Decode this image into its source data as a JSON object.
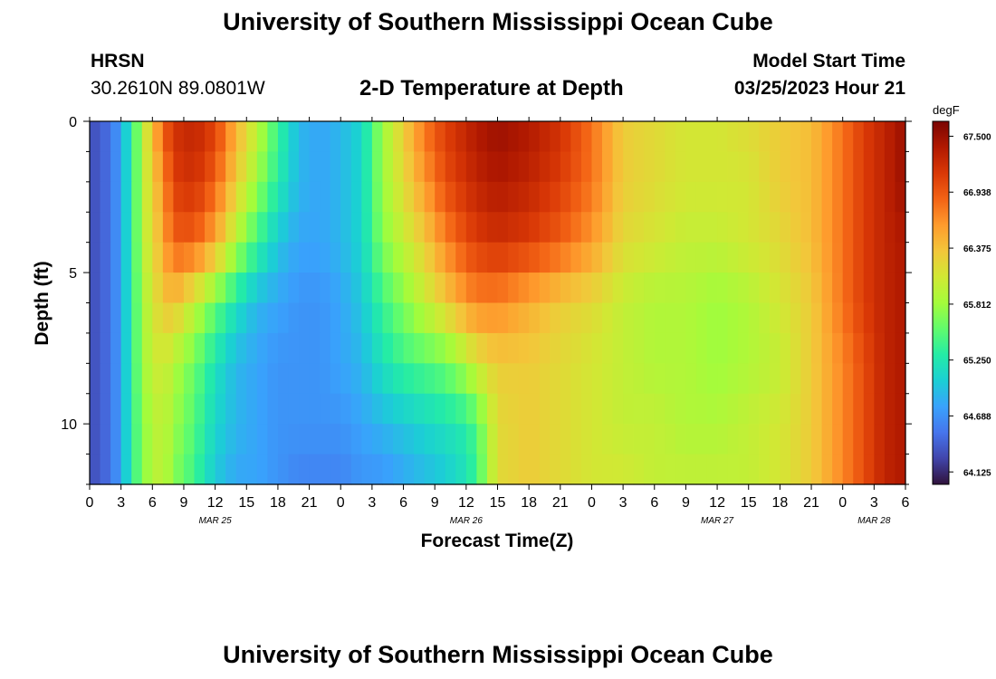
{
  "header": {
    "title": "University of Southern Mississippi Ocean Cube",
    "station_id": "HRSN",
    "coordinates": "30.2610N  89.0801W",
    "plot_title": "2-D Temperature at Depth",
    "model_start_label": "Model Start Time",
    "model_start_value": "03/25/2023 Hour 21"
  },
  "footer": {
    "title": "University of Southern Mississippi Ocean Cube"
  },
  "chart_data": {
    "type": "heatmap",
    "title": "2-D Temperature at Depth",
    "xlabel": "Forecast Time(Z)",
    "ylabel": "Depth (ft)",
    "x_hours_start": 0,
    "x_hours_end": 78,
    "x_ticks": [
      "0",
      "3",
      "6",
      "9",
      "12",
      "15",
      "18",
      "21",
      "0",
      "3",
      "6",
      "9",
      "12",
      "15",
      "18",
      "21",
      "0",
      "3",
      "6",
      "9",
      "12",
      "15",
      "18",
      "21",
      "0",
      "3",
      "6"
    ],
    "date_labels": [
      {
        "label": "MAR 25",
        "at_hour": 12
      },
      {
        "label": "MAR 26",
        "at_hour": 36
      },
      {
        "label": "MAR 27",
        "at_hour": 60
      },
      {
        "label": "MAR 28",
        "at_hour": 75
      }
    ],
    "y_ticks": [
      "0",
      "5",
      "10"
    ],
    "ylim": [
      0,
      12
    ],
    "colorbar": {
      "unit": "degF",
      "min": 64.0,
      "max": 67.65,
      "tick_values": [
        64.125,
        64.688,
        65.25,
        65.812,
        66.375,
        66.938,
        67.5
      ],
      "tick_labels": [
        "64.125",
        "64.688",
        "65.250",
        "65.812",
        "66.375",
        "66.938",
        "67.500"
      ],
      "colors": [
        "#30123b",
        "#4145ab",
        "#4675ed",
        "#39a2fc",
        "#1bcfd4",
        "#24eca6",
        "#61fc6c",
        "#a4fc3b",
        "#d1e834",
        "#f3c63a",
        "#fe9b2d",
        "#f36315",
        "#d93806",
        "#b11901",
        "#7a0403"
      ]
    },
    "depths_ft": [
      0,
      2,
      4,
      6,
      8,
      10,
      12
    ],
    "time_hours": [
      0,
      2,
      3,
      4,
      5,
      6,
      7,
      8,
      10,
      12,
      14,
      16,
      18,
      20,
      22,
      24,
      26,
      28,
      30,
      32,
      34,
      36,
      37,
      39,
      42,
      45,
      48,
      51,
      54,
      57,
      60,
      63,
      66,
      69,
      72,
      74,
      76,
      78
    ],
    "values": [
      [
        64.3,
        64.5,
        64.8,
        65.3,
        65.9,
        66.4,
        66.9,
        67.2,
        67.3,
        67.1,
        66.5,
        66.0,
        65.4,
        64.9,
        64.8,
        64.9,
        65.1,
        65.8,
        66.3,
        66.8,
        67.1,
        67.3,
        67.4,
        67.5,
        67.4,
        67.2,
        66.8,
        66.3,
        66.2,
        66.1,
        66.1,
        66.2,
        66.3,
        66.4,
        66.8,
        67.1,
        67.3,
        67.5
      ],
      [
        64.3,
        64.5,
        64.8,
        65.3,
        65.9,
        66.3,
        66.6,
        67.1,
        67.2,
        66.9,
        66.3,
        65.8,
        65.3,
        64.9,
        64.8,
        64.9,
        65.1,
        65.8,
        66.2,
        66.6,
        67.0,
        67.2,
        67.3,
        67.4,
        67.3,
        67.1,
        66.8,
        66.3,
        66.2,
        66.1,
        66.1,
        66.1,
        66.3,
        66.4,
        66.8,
        67.1,
        67.3,
        67.5
      ],
      [
        64.3,
        64.5,
        64.8,
        65.3,
        65.9,
        66.2,
        66.5,
        66.9,
        66.9,
        66.5,
        65.9,
        65.4,
        65.0,
        64.8,
        64.8,
        64.9,
        65.1,
        65.7,
        66.0,
        66.3,
        66.7,
        67.0,
        67.1,
        67.2,
        67.1,
        66.9,
        66.6,
        66.2,
        66.1,
        66.0,
        66.0,
        66.1,
        66.2,
        66.4,
        66.8,
        67.1,
        67.3,
        67.4
      ],
      [
        64.3,
        64.5,
        64.8,
        65.3,
        65.8,
        66.1,
        66.3,
        66.4,
        66.0,
        65.6,
        65.2,
        64.9,
        64.8,
        64.7,
        64.7,
        64.8,
        65.0,
        65.4,
        65.7,
        66.0,
        66.3,
        66.6,
        66.7,
        66.7,
        66.5,
        66.3,
        66.2,
        66.0,
        65.9,
        65.9,
        65.8,
        65.9,
        66.1,
        66.3,
        66.8,
        67.1,
        67.3,
        67.4
      ],
      [
        64.3,
        64.5,
        64.8,
        65.3,
        65.8,
        66.0,
        66.1,
        65.9,
        65.6,
        65.2,
        64.9,
        64.8,
        64.7,
        64.7,
        64.7,
        64.8,
        64.9,
        65.2,
        65.4,
        65.5,
        65.6,
        65.9,
        66.1,
        66.3,
        66.3,
        66.2,
        66.1,
        66.0,
        65.9,
        65.9,
        65.8,
        65.9,
        66.0,
        66.3,
        66.7,
        67.0,
        67.3,
        67.4
      ],
      [
        64.3,
        64.5,
        64.8,
        65.3,
        65.7,
        65.9,
        66.0,
        65.8,
        65.5,
        65.1,
        64.9,
        64.8,
        64.7,
        64.7,
        64.7,
        64.7,
        64.8,
        64.9,
        65.0,
        65.1,
        65.2,
        65.3,
        65.5,
        66.2,
        66.3,
        66.2,
        66.1,
        66.0,
        66.0,
        65.9,
        65.9,
        66.0,
        66.1,
        66.3,
        66.7,
        67.0,
        67.3,
        67.4
      ],
      [
        64.3,
        64.5,
        64.8,
        65.3,
        65.7,
        65.9,
        66.0,
        65.7,
        65.4,
        65.0,
        64.8,
        64.8,
        64.7,
        64.6,
        64.6,
        64.6,
        64.7,
        64.7,
        64.8,
        64.9,
        65.0,
        65.2,
        65.4,
        66.2,
        66.3,
        66.2,
        66.1,
        66.1,
        66.0,
        66.0,
        66.0,
        66.0,
        66.1,
        66.3,
        66.7,
        67.0,
        67.3,
        67.4
      ]
    ]
  }
}
